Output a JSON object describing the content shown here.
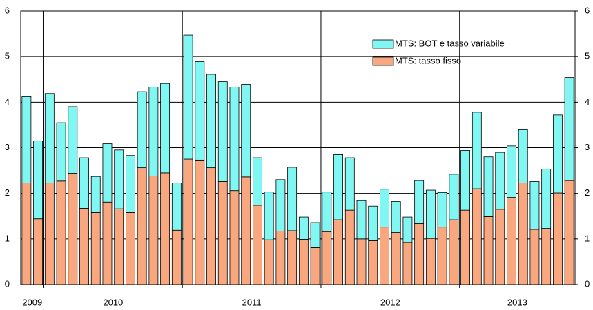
{
  "chart_data": {
    "type": "stacked-bar",
    "categories": [
      "2009",
      null,
      "2010",
      null,
      null,
      null,
      null,
      null,
      null,
      null,
      null,
      null,
      null,
      null,
      "2011",
      null,
      null,
      null,
      null,
      null,
      null,
      null,
      null,
      null,
      null,
      null,
      "2012",
      null,
      null,
      null,
      null,
      null,
      null,
      null,
      null,
      null,
      null,
      null,
      "2013",
      null,
      null,
      null,
      null,
      null,
      null,
      null,
      null,
      null
    ],
    "series": [
      {
        "name": "MTS: tasso fisso",
        "color": "#f9a77f",
        "values": [
          2.23,
          1.44,
          2.23,
          2.27,
          2.44,
          1.67,
          1.58,
          1.81,
          1.66,
          1.58,
          2.56,
          2.38,
          2.45,
          1.19,
          2.75,
          2.73,
          2.56,
          2.26,
          2.06,
          2.36,
          1.74,
          0.98,
          1.17,
          1.18,
          0.99,
          0.81,
          1.16,
          1.42,
          1.63,
          1.0,
          0.96,
          1.26,
          1.14,
          0.92,
          1.34,
          1.01,
          1.26,
          1.42,
          1.63,
          2.1,
          1.49,
          1.65,
          1.91,
          2.23,
          1.21,
          1.23,
          2.01,
          2.28
        ]
      },
      {
        "name": "MTS: BOT e tasso variabile",
        "color": "#80f7f2",
        "values": [
          1.89,
          1.71,
          1.96,
          1.28,
          1.46,
          1.11,
          0.79,
          1.28,
          1.29,
          1.25,
          1.67,
          1.95,
          1.96,
          1.04,
          2.72,
          2.16,
          2.05,
          2.19,
          2.27,
          2.03,
          1.04,
          1.05,
          1.13,
          1.39,
          0.49,
          0.55,
          0.87,
          1.43,
          1.15,
          0.84,
          0.76,
          0.83,
          0.68,
          0.56,
          0.94,
          1.06,
          0.76,
          1.0,
          1.31,
          1.68,
          1.31,
          1.25,
          1.13,
          1.18,
          1.05,
          1.3,
          1.71,
          2.26
        ]
      }
    ],
    "ylim": [
      0,
      6
    ],
    "yticks": [
      0,
      1,
      2,
      3,
      4,
      5,
      6
    ],
    "y2lim": [
      0,
      6
    ],
    "y2ticks": [
      0,
      1,
      2,
      3,
      4,
      5,
      6
    ],
    "grid": true,
    "legend": "upper right"
  }
}
